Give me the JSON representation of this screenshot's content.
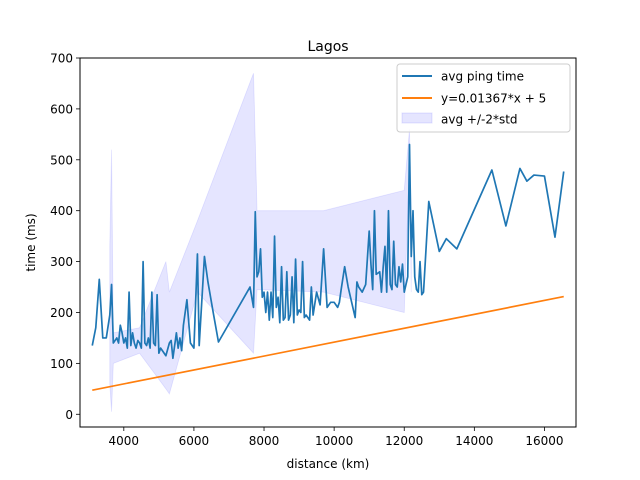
{
  "chart_data": {
    "type": "line",
    "title": "Lagos",
    "xlabel": "distance (km)",
    "ylabel": "time (ms)",
    "xlim": [
      2750,
      16900
    ],
    "ylim": [
      -25,
      700
    ],
    "xticks": [
      4000,
      6000,
      8000,
      10000,
      12000,
      14000,
      16000
    ],
    "yticks": [
      0,
      100,
      200,
      300,
      400,
      500,
      600,
      700
    ],
    "grid": false,
    "legend_position": "top-right",
    "series": [
      {
        "name": "avg ping time",
        "color": "#1f77b4",
        "kind": "line",
        "points": [
          [
            3100,
            135
          ],
          [
            3200,
            170
          ],
          [
            3300,
            265
          ],
          [
            3400,
            150
          ],
          [
            3500,
            150
          ],
          [
            3600,
            195
          ],
          [
            3650,
            255
          ],
          [
            3700,
            140
          ],
          [
            3750,
            145
          ],
          [
            3800,
            150
          ],
          [
            3850,
            140
          ],
          [
            3900,
            175
          ],
          [
            3950,
            160
          ],
          [
            4000,
            140
          ],
          [
            4050,
            150
          ],
          [
            4100,
            130
          ],
          [
            4150,
            240
          ],
          [
            4200,
            135
          ],
          [
            4250,
            160
          ],
          [
            4300,
            140
          ],
          [
            4350,
            130
          ],
          [
            4400,
            145
          ],
          [
            4450,
            140
          ],
          [
            4500,
            130
          ],
          [
            4550,
            300
          ],
          [
            4600,
            140
          ],
          [
            4650,
            135
          ],
          [
            4700,
            150
          ],
          [
            4750,
            130
          ],
          [
            4800,
            240
          ],
          [
            4850,
            140
          ],
          [
            4900,
            135
          ],
          [
            4950,
            235
          ],
          [
            5000,
            120
          ],
          [
            5050,
            130
          ],
          [
            5100,
            125
          ],
          [
            5200,
            115
          ],
          [
            5300,
            140
          ],
          [
            5350,
            145
          ],
          [
            5400,
            110
          ],
          [
            5500,
            160
          ],
          [
            5550,
            130
          ],
          [
            5600,
            150
          ],
          [
            5650,
            125
          ],
          [
            5700,
            175
          ],
          [
            5800,
            225
          ],
          [
            5900,
            140
          ],
          [
            6000,
            130
          ],
          [
            6100,
            315
          ],
          [
            6150,
            135
          ],
          [
            6300,
            310
          ],
          [
            6400,
            260
          ],
          [
            6550,
            200
          ],
          [
            6700,
            142
          ],
          [
            7600,
            250
          ],
          [
            7700,
            210
          ],
          [
            7750,
            398
          ],
          [
            7800,
            270
          ],
          [
            7850,
            280
          ],
          [
            7900,
            325
          ],
          [
            7950,
            230
          ],
          [
            8000,
            240
          ],
          [
            8050,
            200
          ],
          [
            8100,
            240
          ],
          [
            8150,
            185
          ],
          [
            8200,
            240
          ],
          [
            8250,
            190
          ],
          [
            8300,
            350
          ],
          [
            8350,
            210
          ],
          [
            8400,
            230
          ],
          [
            8450,
            180
          ],
          [
            8500,
            290
          ],
          [
            8550,
            185
          ],
          [
            8600,
            190
          ],
          [
            8650,
            280
          ],
          [
            8700,
            185
          ],
          [
            8750,
            195
          ],
          [
            8800,
            270
          ],
          [
            8850,
            180
          ],
          [
            8900,
            305
          ],
          [
            8950,
            195
          ],
          [
            9000,
            205
          ],
          [
            9050,
            200
          ],
          [
            9100,
            300
          ],
          [
            9150,
            190
          ],
          [
            9200,
            195
          ],
          [
            9300,
            185
          ],
          [
            9350,
            250
          ],
          [
            9400,
            195
          ],
          [
            9500,
            240
          ],
          [
            9600,
            215
          ],
          [
            9700,
            325
          ],
          [
            9800,
            210
          ],
          [
            9900,
            220
          ],
          [
            10000,
            220
          ],
          [
            10100,
            210
          ],
          [
            10150,
            220
          ],
          [
            10200,
            245
          ],
          [
            10300,
            290
          ],
          [
            10400,
            250
          ],
          [
            10500,
            220
          ],
          [
            10600,
            190
          ],
          [
            10650,
            260
          ],
          [
            10700,
            250
          ],
          [
            10800,
            240
          ],
          [
            10900,
            255
          ],
          [
            11000,
            360
          ],
          [
            11050,
            295
          ],
          [
            11100,
            245
          ],
          [
            11150,
            400
          ],
          [
            11200,
            275
          ],
          [
            11300,
            280
          ],
          [
            11350,
            240
          ],
          [
            11400,
            290
          ],
          [
            11450,
            330
          ],
          [
            11500,
            240
          ],
          [
            11550,
            400
          ],
          [
            11600,
            255
          ],
          [
            11650,
            245
          ],
          [
            11700,
            340
          ],
          [
            11750,
            255
          ],
          [
            11800,
            250
          ],
          [
            11850,
            290
          ],
          [
            11900,
            260
          ],
          [
            11950,
            295
          ],
          [
            12000,
            240
          ],
          [
            12100,
            270
          ],
          [
            12150,
            530
          ],
          [
            12200,
            310
          ],
          [
            12250,
            400
          ],
          [
            12300,
            270
          ],
          [
            12350,
            245
          ],
          [
            12400,
            240
          ],
          [
            12450,
            300
          ],
          [
            12500,
            235
          ],
          [
            12550,
            240
          ],
          [
            12700,
            418
          ],
          [
            13000,
            320
          ],
          [
            13200,
            345
          ],
          [
            13500,
            325
          ],
          [
            14500,
            480
          ],
          [
            14900,
            370
          ],
          [
            15300,
            483
          ],
          [
            15500,
            458
          ],
          [
            15700,
            470
          ],
          [
            16000,
            468
          ],
          [
            16300,
            348
          ],
          [
            16550,
            477
          ]
        ]
      },
      {
        "name": "y=0.01367*x + 5",
        "color": "#ff7f0e",
        "kind": "line",
        "points": [
          [
            3100,
            47.4
          ],
          [
            16550,
            231.2
          ]
        ]
      },
      {
        "name": "avg +/-2*std",
        "color": "#0000ff",
        "opacity": 0.1,
        "kind": "band",
        "points": [
          [
            3600,
            60,
            330
          ],
          [
            3650,
            5,
            520
          ],
          [
            3700,
            100,
            160
          ],
          [
            4450,
            120,
            170
          ],
          [
            5200,
            50,
            300
          ],
          [
            5300,
            40,
            240
          ],
          [
            6100,
            240,
            380
          ],
          [
            7700,
            120,
            670
          ],
          [
            7800,
            245,
            400
          ],
          [
            9700,
            240,
            400
          ],
          [
            12000,
            200,
            440
          ],
          [
            12150,
            500,
            560
          ],
          [
            12200,
            240,
            380
          ]
        ]
      }
    ]
  }
}
